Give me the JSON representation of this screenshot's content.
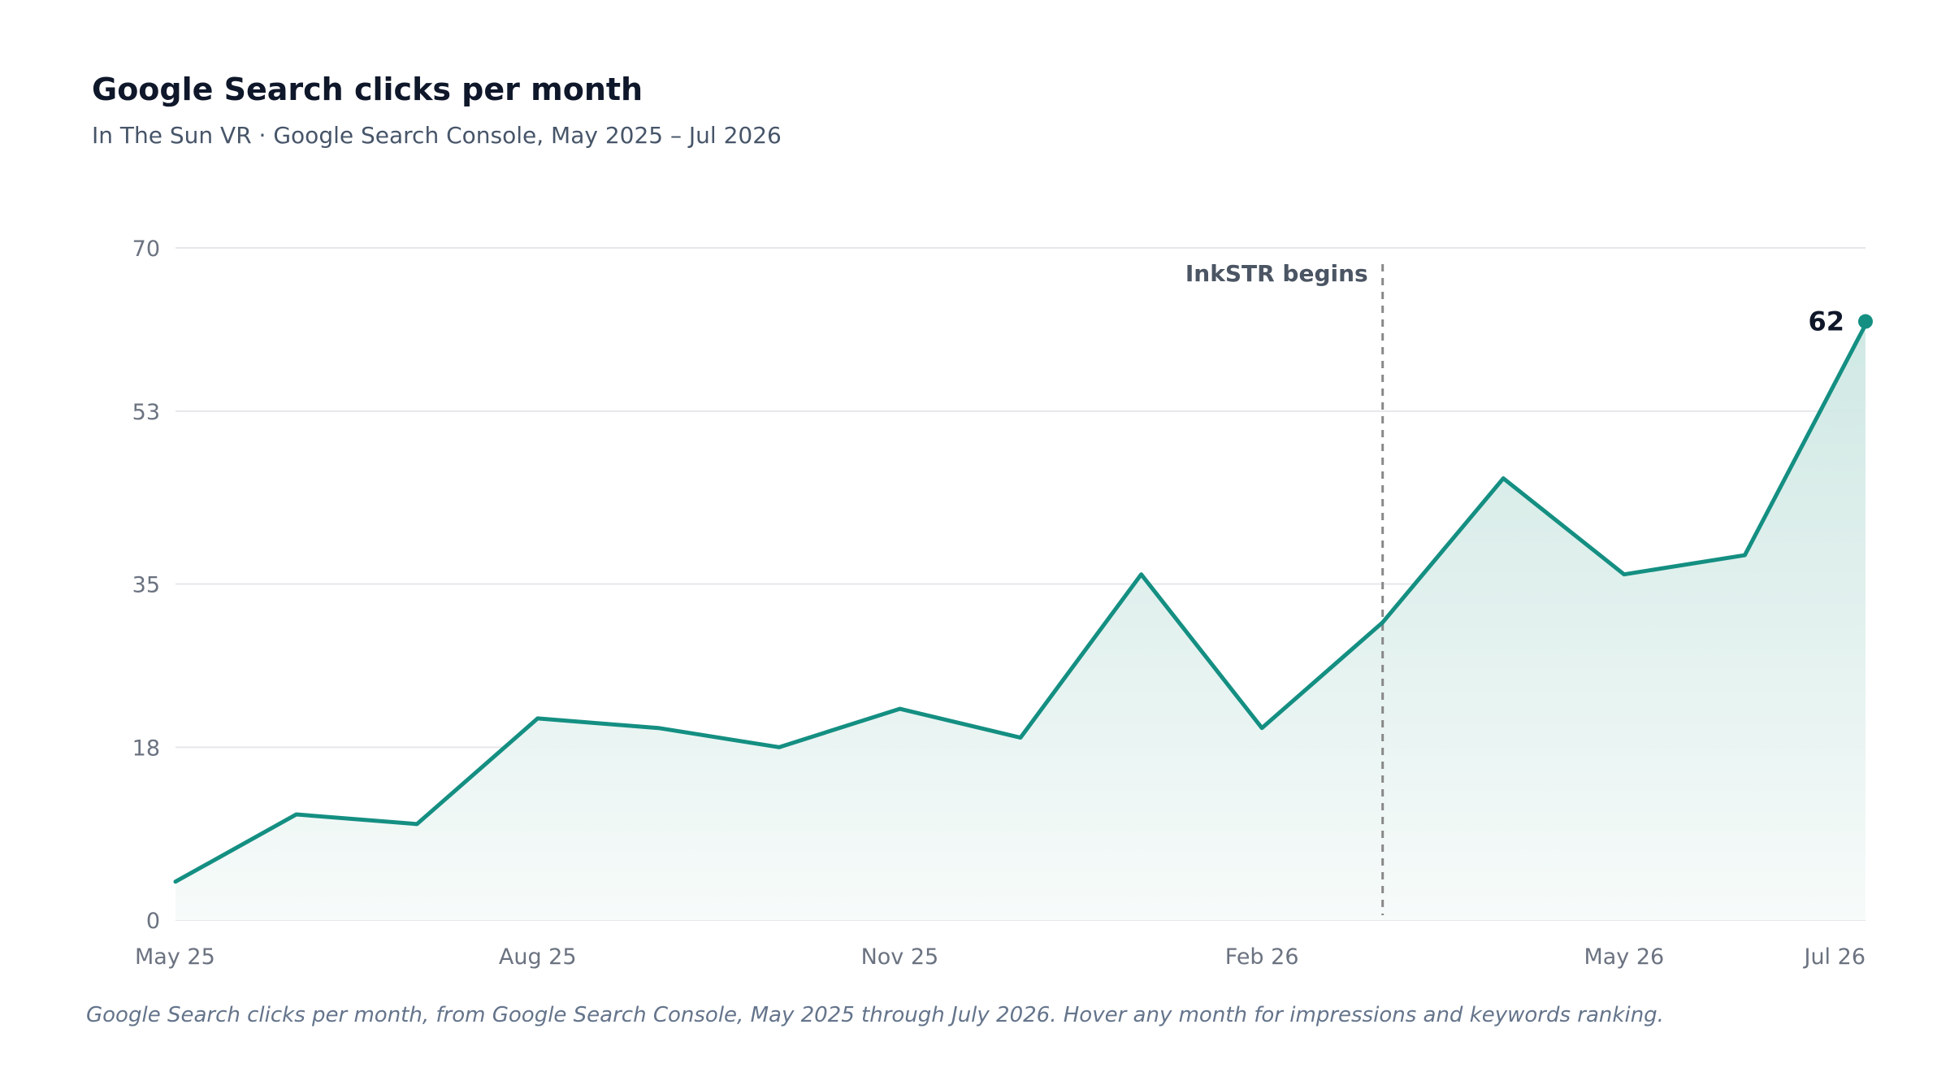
{
  "title": "Google Search clicks per month",
  "subtitle": "In The Sun VR · Google Search Console, May 2025 – Jul 2026",
  "caption": "Google Search clicks per month, from Google Search Console, May 2025 through July 2026. Hover any month for impressions and keywords ranking.",
  "colors": {
    "line": "#148f82",
    "area_top": "#cbe6e1",
    "area_bottom": "#f7fbfa",
    "grid": "#e5e7eb",
    "annotation": "#888888"
  },
  "chart_data": {
    "type": "area",
    "x": [
      "May 25",
      "Jun 25",
      "Jul 25",
      "Aug 25",
      "Sep 25",
      "Oct 25",
      "Nov 25",
      "Dec 25",
      "Jan 26",
      "Feb 26",
      "Mar 26",
      "Apr 26",
      "May 26",
      "Jun 26",
      "Jul 26"
    ],
    "series": [
      {
        "values": [
          4,
          11,
          10,
          21,
          20,
          18,
          22,
          19,
          36,
          20,
          31,
          46,
          36,
          38,
          62
        ]
      }
    ],
    "x_ticks": [
      "May 25",
      "Aug 25",
      "Nov 25",
      "Feb 26",
      "May 26",
      "Jul 26"
    ],
    "y_ticks": [
      0,
      18,
      35,
      53,
      70
    ],
    "ylim": [
      0,
      70
    ],
    "grid": "horizontal",
    "annotation": {
      "label": "InkSTR begins",
      "x": "Mar 26"
    },
    "end_label": "62"
  }
}
